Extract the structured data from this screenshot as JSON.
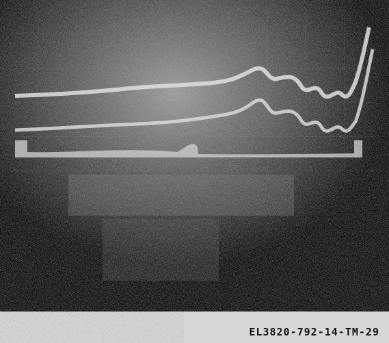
{
  "caption": "EL3820-792-14-TM-29"
}
